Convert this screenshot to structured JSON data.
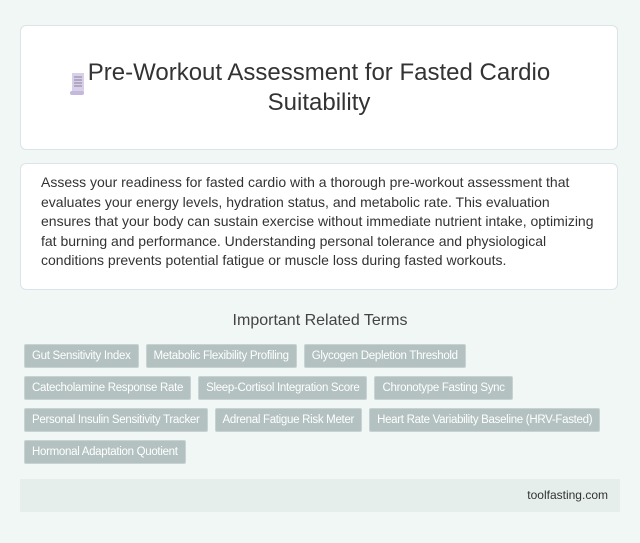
{
  "header": {
    "title": "Pre-Workout Assessment for Fasted Cardio Suitability",
    "icon": "receipt-scroll-icon"
  },
  "description": "Assess your readiness for fasted cardio with a thorough pre-workout assessment that evaluates your energy levels, hydration status, and metabolic rate. This evaluation ensures that your body can sustain exercise without immediate nutrient intake, optimizing fat burning and performance. Understanding personal tolerance and physiological conditions prevents potential fatigue or muscle loss during fasted workouts.",
  "related": {
    "title": "Important Related Terms",
    "tags": [
      "Gut Sensitivity Index",
      "Metabolic Flexibility Profiling",
      "Glycogen Depletion Threshold",
      "Catecholamine Response Rate",
      "Sleep-Cortisol Integration Score",
      "Chronotype Fasting Sync",
      "Personal Insulin Sensitivity Tracker",
      "Adrenal Fatigue Risk Meter",
      "Heart Rate Variability Baseline (HRV-Fasted)",
      "Hormonal Adaptation Quotient"
    ]
  },
  "footer": {
    "site": "toolfasting.com"
  }
}
